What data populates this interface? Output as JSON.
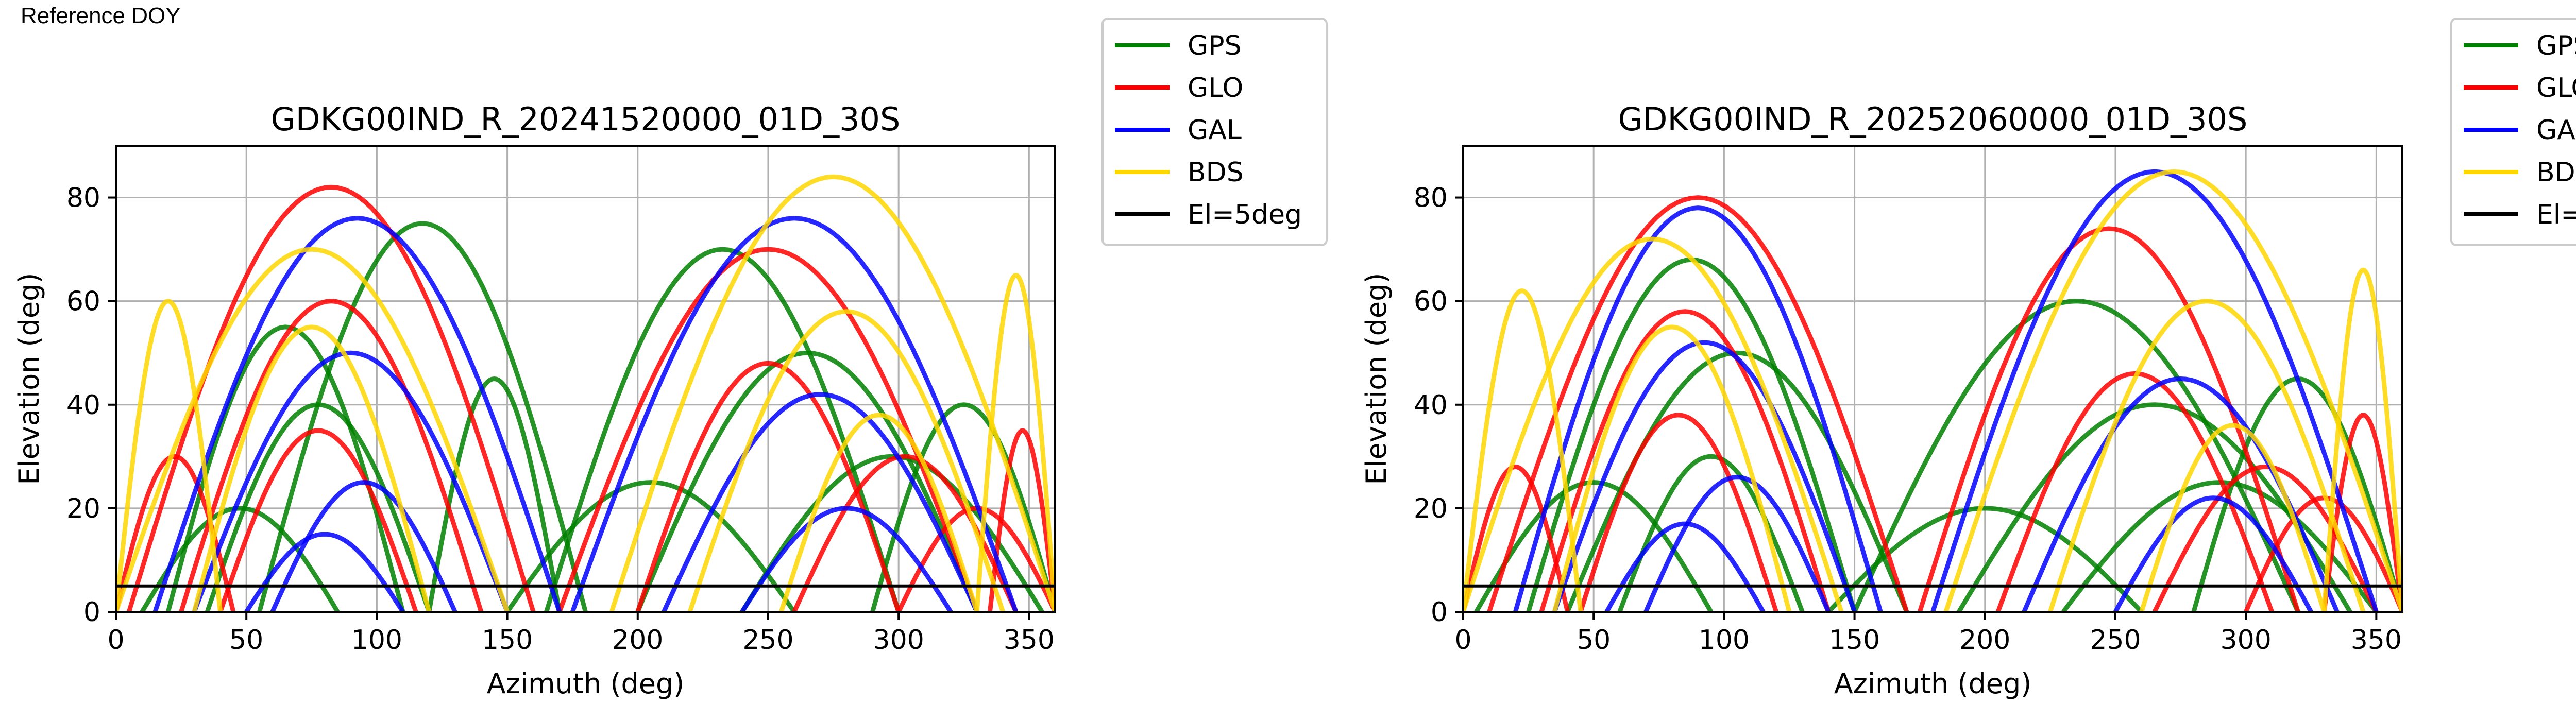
{
  "page": {
    "header_text": "Reference DOY"
  },
  "colors": {
    "GPS": "#008000",
    "GLO": "#ff0000",
    "GAL": "#0000ff",
    "BDS": "#ffd700",
    "mask": "#000000"
  },
  "legend": [
    {
      "label": "GPS",
      "color": "#008000"
    },
    {
      "label": "GLO",
      "color": "#ff0000"
    },
    {
      "label": "GAL",
      "color": "#0000ff"
    },
    {
      "label": "BDS",
      "color": "#ffd700"
    },
    {
      "label": "El=5deg",
      "color": "#000000"
    }
  ],
  "chart_data": [
    {
      "type": "scatter",
      "title": "GDKG00IND_R_20241520000_01D_30S",
      "xlabel": "Azimuth (deg)",
      "ylabel": "Elevation (deg)",
      "xlim": [
        0,
        360
      ],
      "ylim": [
        0,
        90
      ],
      "xticks": [
        0,
        50,
        100,
        150,
        200,
        250,
        300,
        350
      ],
      "yticks": [
        0,
        20,
        40,
        60,
        80
      ],
      "grid": true,
      "legend_position": "outside-right",
      "elevation_mask_deg": 5,
      "series": [
        {
          "name": "GPS",
          "arcs": [
            [
              10,
              85,
              20
            ],
            [
              20,
              110,
              55
            ],
            [
              35,
              120,
              40
            ],
            [
              55,
              180,
              75
            ],
            [
              120,
              170,
              45
            ],
            [
              165,
              300,
              70
            ],
            [
              200,
              330,
              50
            ],
            [
              240,
              355,
              30
            ],
            [
              290,
              360,
              40
            ],
            [
              150,
              260,
              25
            ]
          ]
        },
        {
          "name": "GLO",
          "arcs": [
            [
              5,
              160,
              82
            ],
            [
              25,
              140,
              60
            ],
            [
              40,
              115,
              35
            ],
            [
              170,
              330,
              70
            ],
            [
              200,
              300,
              48
            ],
            [
              260,
              345,
              30
            ],
            [
              300,
              360,
              20
            ],
            [
              0,
              45,
              30
            ],
            [
              335,
              360,
              35
            ]
          ]
        },
        {
          "name": "GAL",
          "arcs": [
            [
              15,
              170,
              76
            ],
            [
              30,
              150,
              50
            ],
            [
              60,
              130,
              25
            ],
            [
              175,
              345,
              76
            ],
            [
              210,
              330,
              42
            ],
            [
              240,
              320,
              20
            ],
            [
              50,
              110,
              15
            ]
          ]
        },
        {
          "name": "BDS",
          "arcs": [
            [
              0,
              150,
              70
            ],
            [
              30,
              120,
              55
            ],
            [
              190,
              360,
              84
            ],
            [
              220,
              340,
              58
            ],
            [
              255,
              330,
              38
            ],
            [
              0,
              40,
              60
            ],
            [
              330,
              360,
              65
            ]
          ]
        }
      ]
    },
    {
      "type": "scatter",
      "title": "GDKG00IND_R_20252060000_01D_30S",
      "xlabel": "Azimuth (deg)",
      "ylabel": "Elevation (deg)",
      "xlim": [
        0,
        360
      ],
      "ylim": [
        0,
        90
      ],
      "xticks": [
        0,
        50,
        100,
        150,
        200,
        250,
        300,
        350
      ],
      "yticks": [
        0,
        20,
        40,
        60,
        80
      ],
      "grid": true,
      "legend_position": "outside-right",
      "elevation_mask_deg": 5,
      "series": [
        {
          "name": "GPS",
          "arcs": [
            [
              5,
              95,
              25
            ],
            [
              25,
              150,
              68
            ],
            [
              40,
              170,
              50
            ],
            [
              60,
              130,
              30
            ],
            [
              150,
              320,
              60
            ],
            [
              190,
              340,
              40
            ],
            [
              230,
              350,
              25
            ],
            [
              280,
              360,
              45
            ],
            [
              140,
              260,
              20
            ]
          ]
        },
        {
          "name": "GLO",
          "arcs": [
            [
              10,
              170,
              80
            ],
            [
              30,
              140,
              58
            ],
            [
              45,
              120,
              38
            ],
            [
              175,
              320,
              74
            ],
            [
              205,
              310,
              46
            ],
            [
              265,
              350,
              28
            ],
            [
              300,
              360,
              22
            ],
            [
              0,
              40,
              28
            ],
            [
              330,
              360,
              38
            ]
          ]
        },
        {
          "name": "GAL",
          "arcs": [
            [
              20,
              160,
              78
            ],
            [
              35,
              150,
              52
            ],
            [
              70,
              140,
              26
            ],
            [
              180,
              350,
              85
            ],
            [
              215,
              335,
              45
            ],
            [
              250,
              325,
              22
            ],
            [
              55,
              115,
              17
            ]
          ]
        },
        {
          "name": "BDS",
          "arcs": [
            [
              0,
              145,
              72
            ],
            [
              35,
              125,
              55
            ],
            [
              185,
              360,
              85
            ],
            [
              225,
              345,
              60
            ],
            [
              260,
              330,
              36
            ],
            [
              0,
              45,
              62
            ],
            [
              330,
              360,
              66
            ]
          ]
        }
      ]
    }
  ]
}
